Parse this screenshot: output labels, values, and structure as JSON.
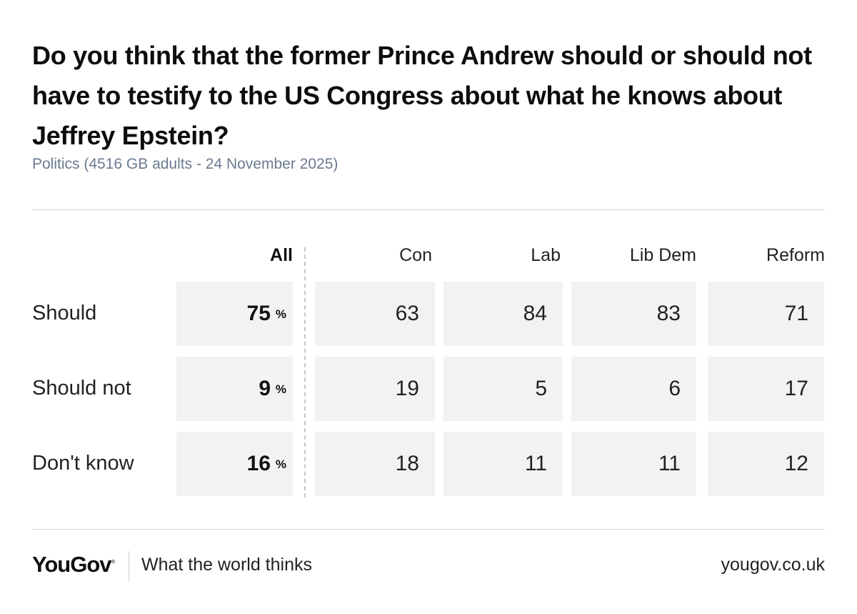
{
  "chart_data": {
    "type": "table",
    "title": "Do you think that the former Prince Andrew should or should not have to testify to the US Congress about what he knows about Jeffrey Epstein?",
    "subtitle": "Politics (4516 GB adults - 24 November 2025)",
    "columns": [
      "All",
      "Con",
      "Lab",
      "Lib Dem",
      "Reform"
    ],
    "percent_symbol": "%",
    "rows": [
      {
        "label": "Should",
        "values": [
          75,
          63,
          84,
          83,
          71
        ]
      },
      {
        "label": "Should not",
        "values": [
          9,
          19,
          5,
          6,
          17
        ]
      },
      {
        "label": "Don't know",
        "values": [
          16,
          18,
          11,
          11,
          12
        ]
      }
    ]
  },
  "footer": {
    "logo": "YouGov",
    "tagline": "What the world thinks",
    "url": "yougov.co.uk"
  },
  "colors": {
    "cell_background": "#f2f2f2",
    "subtitle": "#6b7a90",
    "text": "#111111"
  }
}
